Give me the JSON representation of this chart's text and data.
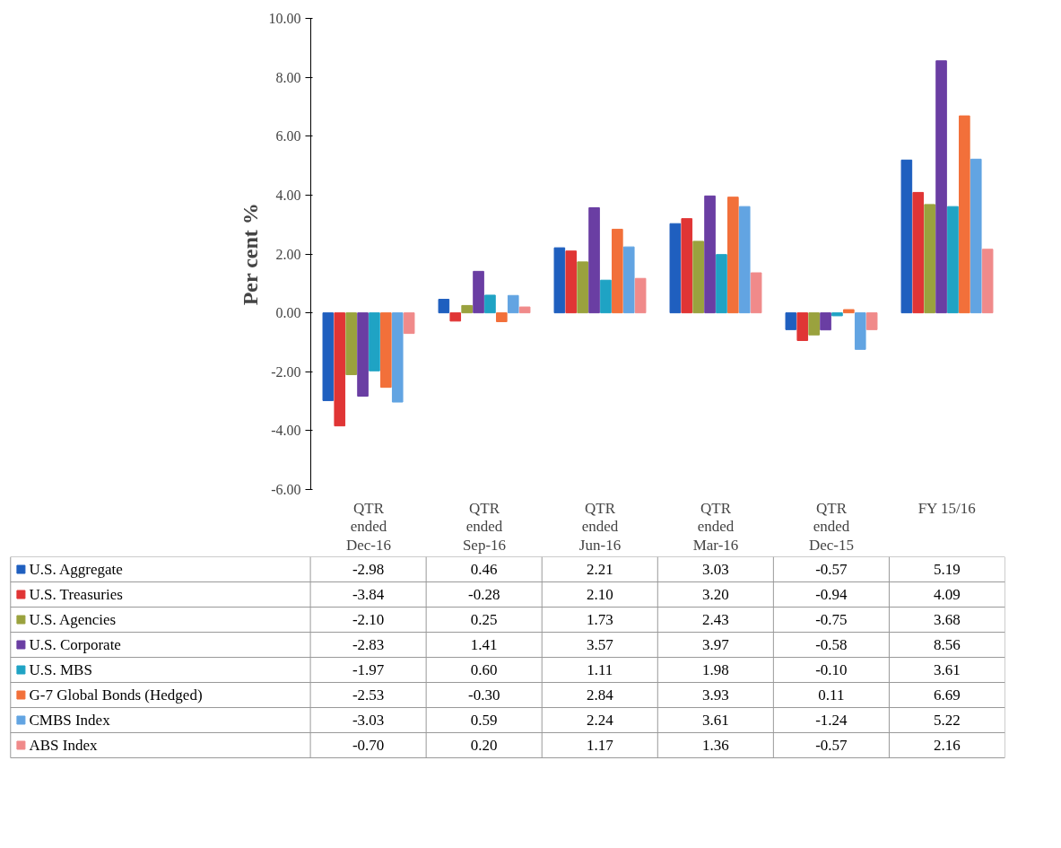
{
  "chart_data": {
    "type": "bar",
    "ylabel": "Per cent %",
    "categories": [
      "QTR ended Dec-16",
      "QTR ended Sep-16",
      "QTR ended Jun-16",
      "QTR ended Mar-16",
      "QTR ended Dec-15",
      "FY 15/16"
    ],
    "ylim": [
      -6,
      10
    ],
    "yticks": [
      {
        "value": -6,
        "label": "-6.00"
      },
      {
        "value": -4,
        "label": "-4.00"
      },
      {
        "value": -2,
        "label": "-2.00"
      },
      {
        "value": 0,
        "label": "0.00"
      },
      {
        "value": 2,
        "label": "2.00"
      },
      {
        "value": 4,
        "label": "4.00"
      },
      {
        "value": 6,
        "label": "6.00"
      },
      {
        "value": 8,
        "label": "8.00"
      },
      {
        "value": 10,
        "label": "10.00"
      }
    ],
    "grid": false,
    "legend": "bottom",
    "series": [
      {
        "name": "U.S. Aggregate",
        "color": "#1f5fbf",
        "values": [
          -2.98,
          0.46,
          2.21,
          3.03,
          -0.57,
          5.19
        ],
        "value_labels": [
          "-2.98",
          "0.46",
          "2.21",
          "3.03",
          "-0.57",
          "5.19"
        ]
      },
      {
        "name": "U.S. Treasuries",
        "color": "#e03535",
        "values": [
          -3.84,
          -0.28,
          2.1,
          3.2,
          -0.94,
          4.09
        ],
        "value_labels": [
          "-3.84",
          "-0.28",
          "2.10",
          "3.20",
          "-0.94",
          "4.09"
        ]
      },
      {
        "name": "U.S. Agencies",
        "color": "#9aa23e",
        "values": [
          -2.1,
          0.25,
          1.73,
          2.43,
          -0.75,
          3.68
        ],
        "value_labels": [
          "-2.10",
          "0.25",
          "1.73",
          "2.43",
          "-0.75",
          "3.68"
        ]
      },
      {
        "name": "U.S. Corporate",
        "color": "#6a3ea3",
        "values": [
          -2.83,
          1.41,
          3.57,
          3.97,
          -0.58,
          8.56
        ],
        "value_labels": [
          "-2.83",
          "1.41",
          "3.57",
          "3.97",
          "-0.58",
          "8.56"
        ]
      },
      {
        "name": "U.S. MBS",
        "color": "#1fa3c4",
        "values": [
          -1.97,
          0.6,
          1.11,
          1.98,
          -0.1,
          3.61
        ],
        "value_labels": [
          "-1.97",
          "0.60",
          "1.11",
          "1.98",
          "-0.10",
          "3.61"
        ]
      },
      {
        "name": "G-7 Global Bonds (Hedged)",
        "color": "#f2703a",
        "values": [
          -2.53,
          -0.3,
          2.84,
          3.93,
          0.11,
          6.69
        ],
        "value_labels": [
          "-2.53",
          "-0.30",
          "2.84",
          "3.93",
          "0.11",
          "6.69"
        ]
      },
      {
        "name": "CMBS Index",
        "color": "#62a4e2",
        "values": [
          -3.03,
          0.59,
          2.24,
          3.61,
          -1.24,
          5.22
        ],
        "value_labels": [
          "-3.03",
          "0.59",
          "2.24",
          "3.61",
          "-1.24",
          "5.22"
        ]
      },
      {
        "name": "ABS Index",
        "color": "#f08a8a",
        "values": [
          -0.7,
          0.2,
          1.17,
          1.36,
          -0.57,
          2.16
        ],
        "value_labels": [
          "-0.70",
          "0.20",
          "1.17",
          "1.36",
          "-0.57",
          "2.16"
        ]
      }
    ]
  }
}
